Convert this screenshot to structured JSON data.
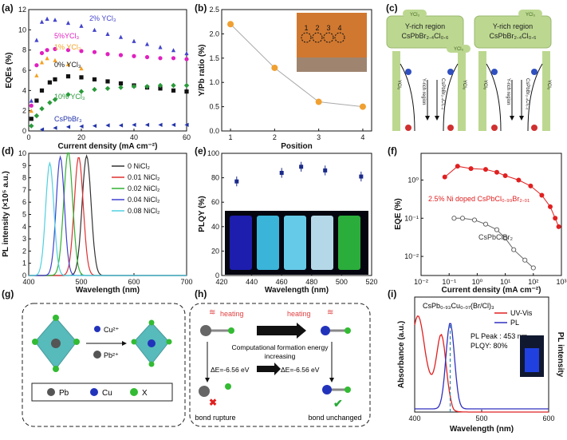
{
  "figure": {
    "panel_labels": [
      "(a)",
      "(b)",
      "(c)",
      "(d)",
      "(e)",
      "(f)",
      "(g)",
      "(h)",
      "(i)"
    ]
  },
  "chart_data": [
    {
      "id": "a",
      "type": "scatter",
      "xlabel": "Current density (mA cm⁻²)",
      "ylabel": "EQEs (%)",
      "xlim": [
        0,
        60
      ],
      "ylim": [
        0,
        12
      ],
      "xticks": [
        "0",
        "20",
        "40",
        "60"
      ],
      "yticks": [
        "0",
        "2",
        "4",
        "6",
        "8",
        "10",
        "12"
      ],
      "series": [
        {
          "name": "2% YCl₃",
          "color": "#4444cc",
          "marker": "triangle",
          "x": [
            1,
            3,
            5,
            7,
            10,
            15,
            20,
            25,
            30,
            35,
            40,
            45,
            50,
            55,
            60
          ],
          "y": [
            3,
            9,
            10.8,
            11.1,
            11.0,
            10.7,
            10.4,
            10.0,
            9.6,
            9.3,
            8.9,
            8.6,
            8.3,
            8.0,
            7.7
          ]
        },
        {
          "name": "5%YCl₃",
          "color": "#e020c0",
          "marker": "circle",
          "x": [
            1,
            3,
            5,
            7,
            10,
            15,
            20,
            25,
            30,
            35,
            40,
            45,
            50,
            55,
            60
          ],
          "y": [
            2.5,
            6.5,
            7.7,
            8.0,
            8.1,
            8.0,
            7.9,
            7.8,
            7.6,
            7.5,
            7.4,
            7.3,
            7.2,
            7.2,
            7.1
          ]
        },
        {
          "name": "1% YCl₃",
          "color": "#f5a020",
          "marker": "triangle",
          "x": [
            1,
            3,
            5,
            7,
            10,
            15,
            20
          ],
          "y": [
            2,
            5.5,
            6.8,
            7.2,
            7.0,
            6.6,
            6.2
          ]
        },
        {
          "name": "0% YCl₃",
          "color": "#111111",
          "marker": "square",
          "x": [
            1,
            3,
            5,
            8,
            10,
            15,
            20,
            25,
            30,
            35,
            40,
            45,
            50,
            55,
            60
          ],
          "y": [
            1.2,
            3,
            4,
            4.8,
            5.1,
            5.4,
            5.3,
            5.1,
            4.9,
            4.7,
            4.5,
            4.3,
            4.2,
            4.0,
            3.9
          ]
        },
        {
          "name": "10% YCl₃",
          "color": "#2a9a3a",
          "marker": "diamond",
          "x": [
            1,
            3,
            5,
            8,
            10,
            15,
            20,
            25,
            30,
            35,
            40,
            45,
            50,
            55,
            60
          ],
          "y": [
            0.5,
            1.5,
            2.2,
            2.8,
            3.1,
            3.6,
            3.9,
            4.1,
            4.2,
            4.3,
            4.4,
            4.4,
            4.5,
            4.5,
            4.5
          ]
        },
        {
          "name": "CsPbBr₃",
          "color": "#2233aa",
          "marker": "triangle-left",
          "x": [
            5,
            10,
            15,
            20,
            25,
            30,
            35,
            40,
            45,
            50,
            55,
            60
          ],
          "y": [
            0.15,
            0.3,
            0.4,
            0.45,
            0.5,
            0.55,
            0.55,
            0.6,
            0.6,
            0.6,
            0.6,
            0.6
          ]
        }
      ]
    },
    {
      "id": "b",
      "type": "line",
      "xlabel": "Position",
      "ylabel": "Y/Pb ratio (%)",
      "xlim": [
        0.8,
        4.2
      ],
      "ylim": [
        0,
        2.5
      ],
      "xticks": [
        "1",
        "2",
        "3",
        "4"
      ],
      "yticks": [
        "0.0",
        "0.5",
        "1.0",
        "1.5",
        "2.0",
        "2.5"
      ],
      "x": [
        1,
        2,
        3,
        4
      ],
      "y": [
        2.2,
        1.3,
        0.6,
        0.5
      ],
      "color": "#f0a030",
      "inset_labels": [
        "1",
        "2",
        "3",
        "4"
      ]
    },
    {
      "id": "d",
      "type": "line",
      "xlabel": "Wavelength (nm)",
      "ylabel": "PL intensity (×10⁵ a.u.)",
      "xlim": [
        400,
        700
      ],
      "ylim": [
        0,
        10
      ],
      "xticks": [
        "400",
        "500",
        "600",
        "700"
      ],
      "yticks": [
        "0",
        "1",
        "2",
        "3",
        "4",
        "5",
        "6",
        "7",
        "8",
        "9",
        "10"
      ],
      "series": [
        {
          "name": "0 NiCl₂",
          "color": "#333333",
          "peak": 510,
          "height": 9.8,
          "width": 12
        },
        {
          "name": "0.01 NiCl₂",
          "color": "#e03030",
          "peak": 495,
          "height": 9.7,
          "width": 12
        },
        {
          "name": "0.02 NiCl₂",
          "color": "#30b030",
          "peak": 475,
          "height": 10.1,
          "width": 12
        },
        {
          "name": "0.04 NiCl₂",
          "color": "#4040d0",
          "peak": 460,
          "height": 9.7,
          "width": 11
        },
        {
          "name": "0.08 NiCl₂",
          "color": "#50d0e0",
          "peak": 440,
          "height": 9.2,
          "width": 11
        }
      ]
    },
    {
      "id": "e",
      "type": "scatter",
      "xlabel": "Wavelength (nm)",
      "ylabel": "PLQY (%)",
      "xlim": [
        420,
        520
      ],
      "ylim": [
        0,
        100
      ],
      "xticks": [
        "420",
        "440",
        "460",
        "480",
        "500",
        "520"
      ],
      "yticks": [
        "0",
        "20",
        "40",
        "60",
        "80",
        "100"
      ],
      "x": [
        430,
        460,
        473,
        489,
        513
      ],
      "y": [
        77,
        84,
        89,
        86,
        81
      ],
      "err": [
        4,
        4,
        4,
        4,
        4
      ],
      "color": "#1a2a8a",
      "vial_colors": [
        "#2020c0",
        "#40c8f0",
        "#70e0ff",
        "#c8f0ff",
        "#30c040"
      ]
    },
    {
      "id": "f",
      "type": "line",
      "xlabel": "Current density (mA cm⁻²)",
      "ylabel": "EQE (%)",
      "log_x": true,
      "log_y": true,
      "xlim_exp": [
        -2,
        3
      ],
      "ylim_exp": [
        -2.5,
        0.7
      ],
      "xticks": [
        "10⁻²",
        "10⁻¹",
        "10⁰",
        "10¹",
        "10²",
        "10³"
      ],
      "yticks": [
        "10⁻²",
        "10⁻¹",
        "10⁰"
      ],
      "series": [
        {
          "name": "2.5% Ni doped CsPbCl₀.₉₉Br₂.₀₁",
          "color": "#e02020",
          "x": [
            0.07,
            0.2,
            0.6,
            2,
            5,
            10,
            30,
            80,
            200,
            400,
            600,
            800
          ],
          "y": [
            1.2,
            2.3,
            2.0,
            1.9,
            1.6,
            1.3,
            1.0,
            0.7,
            0.4,
            0.2,
            0.1,
            0.06
          ]
        },
        {
          "name": "CsPbClBr₂",
          "color": "#666666",
          "x": [
            0.15,
            0.3,
            0.8,
            2,
            5,
            10,
            20,
            50,
            100
          ],
          "y": [
            0.1,
            0.1,
            0.09,
            0.07,
            0.05,
            0.03,
            0.015,
            0.008,
            0.005
          ]
        }
      ]
    },
    {
      "id": "i",
      "type": "line",
      "title": "CsPb₀.₉₃Cu₀.₀₇(Br/Cl)₃",
      "xlabel": "Wavelength (nm)",
      "ylabel": "Absorbance (a.u.)",
      "ylabel_right": "PL intensity",
      "xlim": [
        400,
        600
      ],
      "xticks": [
        "400",
        "500",
        "600"
      ],
      "series": [
        {
          "name": "UV-Vis",
          "color": "#e02020"
        },
        {
          "name": "PL",
          "color": "#3030c0",
          "peak": 453
        }
      ],
      "annotations": [
        "PL Peak : 453 nm",
        "PLQY: 80%"
      ]
    }
  ],
  "panel_c": {
    "region_label_1": "Y-rich region",
    "region_formula_1": "CsPbBr₂.₄Cl₀.₆",
    "region_label_2": "Y-rich region",
    "region_formula_2": "CsPbBr₂.₄Cl₀.₆",
    "ycl3": "YCl₃",
    "vertical_y_rich": "Y-rich region",
    "vertical_formula": "CsPbBr₂.₄Cl₀.₆"
  },
  "panel_g": {
    "cu_label": "Cu²⁺",
    "pb_label": "Pb²⁺",
    "legend": [
      "Pb",
      "Cu",
      "X"
    ],
    "colors": {
      "pb": "#555555",
      "cu": "#2233bb",
      "x": "#33bb33",
      "octahedron": "#3aaeb0"
    }
  },
  "panel_h": {
    "heating_left": "heating",
    "heating_right": "heating",
    "formation_text_1": "Computational formation energy",
    "formation_text_2": "increasing",
    "delta_e_left": "ΔE=-6.56 eV",
    "delta_e_right": "ΔE=-6.56 eV",
    "bond_rupture": "bond rupture",
    "bond_unchanged": "bond unchanged"
  }
}
